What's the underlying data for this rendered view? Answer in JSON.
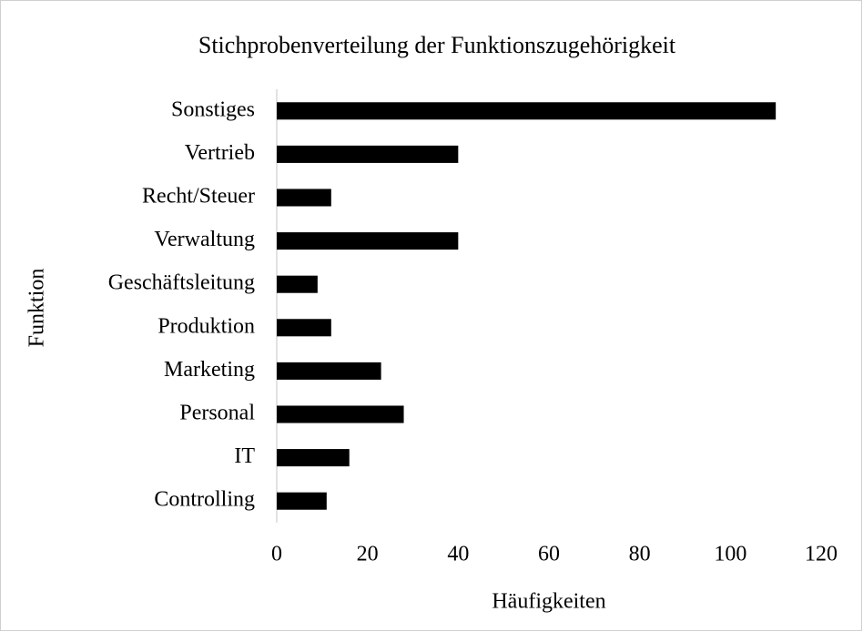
{
  "chart_data": {
    "type": "bar",
    "orientation": "horizontal",
    "title": "Stichprobenverteilung der Funktionszugehörigkeit",
    "x_label": "Häufigkeiten",
    "y_label": "Funktion",
    "categories": [
      "Sonstiges",
      "Vertrieb",
      "Recht/Steuer",
      "Verwaltung",
      "Geschäftsleitung",
      "Produktion",
      "Marketing",
      "Personal",
      "IT",
      "Controlling"
    ],
    "values": [
      110,
      40,
      12,
      40,
      9,
      12,
      23,
      28,
      16,
      11
    ],
    "color": "#000000",
    "xlim": [
      0,
      120
    ],
    "xticks": [
      0,
      20,
      40,
      60,
      80,
      100,
      120
    ],
    "grid": false
  }
}
